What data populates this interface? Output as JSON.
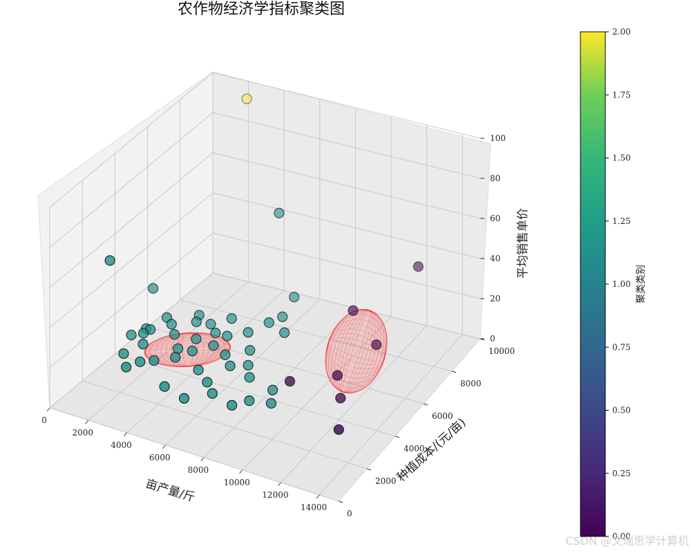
{
  "chart_data": {
    "type": "scatter",
    "title": "农作物经济学指标聚类图",
    "xlabel": "亩产量/斤",
    "ylabel": "种植成本/(元/亩)",
    "zlabel": "平均销售单价",
    "xticks": [
      "0",
      "2000",
      "4000",
      "6000",
      "8000",
      "10000",
      "12000",
      "14000"
    ],
    "yticks": [
      "0",
      "2000",
      "4000",
      "6000",
      "8000",
      "10000"
    ],
    "zticks": [
      "0",
      "20",
      "40",
      "60",
      "80",
      "100"
    ],
    "xlim": [
      0,
      15000
    ],
    "ylim": [
      0,
      10000
    ],
    "zlim": [
      0,
      100
    ],
    "grid": true,
    "colorbar": {
      "label": "聚类类别",
      "ticks": [
        "0.00",
        "0.25",
        "0.50",
        "0.75",
        "1.00",
        "1.25",
        "1.50",
        "1.75",
        "2.00"
      ],
      "range": [
        0,
        2
      ],
      "colormap": "viridis"
    },
    "cluster_colors": [
      "#440154",
      "#21918c",
      "#fde725"
    ],
    "ellipse_color": "#ff0000",
    "series": [
      {
        "cluster": 0,
        "points": [
          [
            9200,
            4200,
            10
          ],
          [
            10800,
            5400,
            8
          ],
          [
            11600,
            4600,
            5
          ],
          [
            12600,
            3200,
            3
          ],
          [
            11800,
            6800,
            15
          ],
          [
            10200,
            7200,
            25
          ],
          [
            12500,
            8800,
            40
          ]
        ]
      },
      {
        "cluster": 1,
        "points": [
          [
            300,
            6000,
            20
          ],
          [
            600,
            3000,
            55
          ],
          [
            700,
            4200,
            10
          ],
          [
            800,
            5000,
            8
          ],
          [
            900,
            3500,
            6
          ],
          [
            1200,
            4800,
            10
          ],
          [
            1500,
            4000,
            9
          ],
          [
            2000,
            5200,
            12
          ],
          [
            2500,
            4800,
            11
          ],
          [
            3000,
            5600,
            13
          ],
          [
            3500,
            5000,
            10
          ],
          [
            3800,
            4400,
            9
          ],
          [
            4200,
            5400,
            12
          ],
          [
            4600,
            4800,
            11
          ],
          [
            5000,
            5200,
            14
          ],
          [
            5400,
            4600,
            10
          ],
          [
            5800,
            5600,
            15
          ],
          [
            6000,
            4200,
            9
          ],
          [
            6400,
            5000,
            12
          ],
          [
            6800,
            4400,
            10
          ],
          [
            7200,
            4000,
            8
          ],
          [
            2600,
            3400,
            8
          ],
          [
            3400,
            3800,
            9
          ],
          [
            4800,
            3600,
            8
          ],
          [
            5600,
            3200,
            7
          ],
          [
            6200,
            2800,
            6
          ],
          [
            7400,
            2600,
            5
          ],
          [
            8000,
            3000,
            6
          ],
          [
            8600,
            3800,
            7
          ],
          [
            9000,
            3200,
            6
          ],
          [
            7600,
            5800,
            18
          ],
          [
            7000,
            6400,
            20
          ],
          [
            6600,
            6000,
            19
          ],
          [
            1800,
            2600,
            8
          ],
          [
            2200,
            3000,
            9
          ],
          [
            4000,
            2400,
            6
          ],
          [
            5200,
            2200,
            5
          ],
          [
            6800,
            7400,
            22
          ],
          [
            5800,
            7600,
            60
          ],
          [
            3200,
            4200,
            10
          ],
          [
            1000,
            4600,
            9
          ],
          [
            1400,
            5600,
            11
          ],
          [
            4400,
            6200,
            14
          ],
          [
            3600,
            5800,
            12
          ],
          [
            2800,
            6000,
            13
          ]
        ]
      },
      {
        "cluster": 2,
        "points": [
          [
            2800,
            9000,
            100
          ]
        ]
      }
    ]
  },
  "watermark": "CSDN @文瑞思学计算机"
}
